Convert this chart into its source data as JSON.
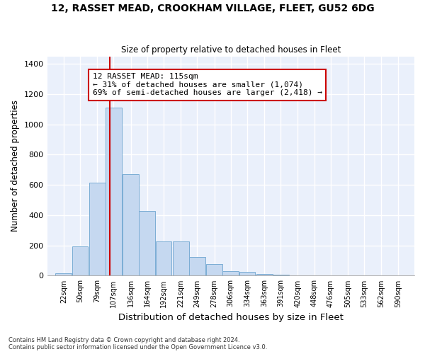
{
  "title1": "12, RASSET MEAD, CROOKHAM VILLAGE, FLEET, GU52 6DG",
  "title2": "Size of property relative to detached houses in Fleet",
  "xlabel": "Distribution of detached houses by size in Fleet",
  "ylabel": "Number of detached properties",
  "bar_color": "#c5d8f0",
  "bar_edge_color": "#7badd4",
  "bg_color": "#eaf0fb",
  "grid_color": "#ffffff",
  "annotation_box_text": "12 RASSET MEAD: 115sqm\n← 31% of detached houses are smaller (1,074)\n69% of semi-detached houses are larger (2,418) →",
  "vline_x": 115,
  "vline_color": "#cc0000",
  "categories": [
    "22sqm",
    "50sqm",
    "79sqm",
    "107sqm",
    "136sqm",
    "164sqm",
    "192sqm",
    "221sqm",
    "249sqm",
    "278sqm",
    "306sqm",
    "334sqm",
    "363sqm",
    "391sqm",
    "420sqm",
    "448sqm",
    "476sqm",
    "505sqm",
    "533sqm",
    "562sqm",
    "590sqm"
  ],
  "bin_edges": [
    22,
    50,
    79,
    107,
    136,
    164,
    192,
    221,
    249,
    278,
    306,
    334,
    363,
    391,
    420,
    448,
    476,
    505,
    533,
    562,
    590
  ],
  "bin_width": 28,
  "values": [
    15,
    195,
    615,
    1110,
    670,
    430,
    225,
    225,
    125,
    75,
    30,
    25,
    10,
    5,
    3,
    2,
    1,
    0,
    0,
    0,
    0
  ],
  "ylim": [
    0,
    1450
  ],
  "yticks": [
    0,
    200,
    400,
    600,
    800,
    1000,
    1200,
    1400
  ],
  "footer1": "Contains HM Land Registry data © Crown copyright and database right 2024.",
  "footer2": "Contains public sector information licensed under the Open Government Licence v3.0."
}
